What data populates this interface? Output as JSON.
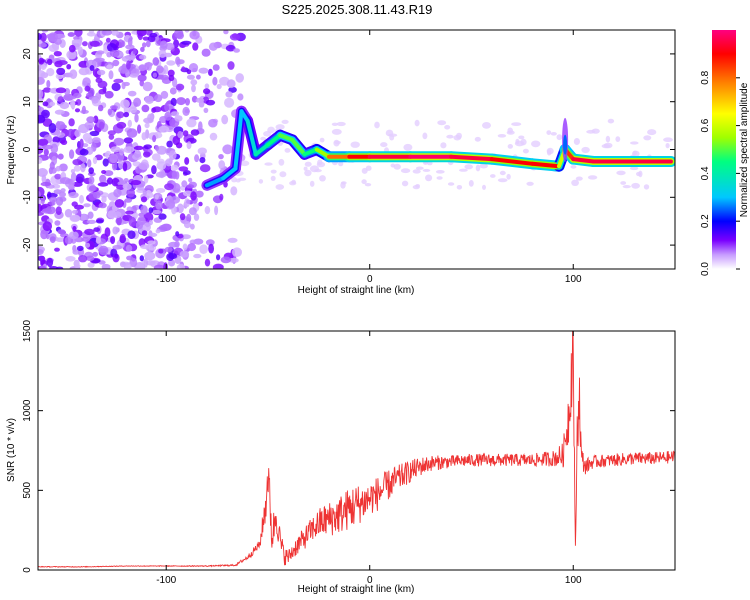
{
  "title": "S225.2025.308.11.43.R19",
  "chart_data": [
    {
      "type": "heatmap",
      "title": "S225.2025.308.11.43.R19",
      "xlabel": "Height of straight line (km)",
      "ylabel": "Frequency (Hz)",
      "xlim": [
        -163,
        150
      ],
      "ylim": [
        -25,
        25
      ],
      "xticks": [
        "-100",
        "0",
        "100"
      ],
      "yticks": [
        "20",
        "10",
        "0",
        "-10",
        "-20"
      ],
      "colorbar": {
        "label": "Normalized spectral amplitude",
        "range": [
          0,
          1
        ],
        "ticks": [
          "0.0",
          "0.2",
          "0.4",
          "0.6",
          "0.8"
        ],
        "colors": [
          "#ffffff",
          "#c79cff",
          "#7a00ff",
          "#0000ff",
          "#00c8ff",
          "#00ff80",
          "#a0ff00",
          "#ffff00",
          "#ff8000",
          "#ff0000",
          "#ff0080"
        ]
      },
      "ridge": {
        "x": [
          -80,
          -72,
          -66,
          -63,
          -60,
          -56,
          -50,
          -44,
          -38,
          -32,
          -26,
          -20,
          -10,
          0,
          20,
          40,
          60,
          80,
          93,
          96,
          100,
          110,
          130,
          148
        ],
        "y": [
          -7.5,
          -6,
          -4,
          8,
          6,
          -1,
          1,
          3,
          2,
          -1,
          0,
          -1.5,
          -1.5,
          -1.5,
          -1.5,
          -1.5,
          -2,
          -3,
          -3.5,
          0,
          -2,
          -2.5,
          -2.5,
          -2.5
        ],
        "amplitude": [
          0.28,
          0.3,
          0.3,
          0.3,
          0.35,
          0.4,
          0.45,
          0.5,
          0.5,
          0.45,
          0.55,
          0.8,
          0.9,
          0.95,
          0.98,
          0.95,
          0.9,
          0.9,
          0.6,
          0.85,
          0.95,
          0.95,
          0.95,
          0.9
        ]
      }
    },
    {
      "type": "line",
      "xlabel": "Height of straight line (km)",
      "ylabel": "SNR (10 * v/v)",
      "xlim": [
        -163,
        150
      ],
      "ylim": [
        0,
        1500
      ],
      "xticks": [
        "-100",
        "0",
        "100"
      ],
      "yticks": [
        "0",
        "500",
        "1000",
        "1500"
      ],
      "series": [
        {
          "name": "SNR",
          "color": "#ee3333",
          "x": [
            -163,
            -140,
            -120,
            -100,
            -80,
            -66,
            -60,
            -54,
            -51,
            -50,
            -48,
            -46,
            -44,
            -42,
            -40,
            -36,
            -32,
            -28,
            -24,
            -20,
            -16,
            -12,
            -8,
            -4,
            0,
            4,
            8,
            12,
            16,
            20,
            25,
            30,
            40,
            50,
            60,
            70,
            80,
            90,
            95,
            98,
            100,
            101,
            102,
            103,
            104,
            106,
            110,
            120,
            130,
            140,
            150
          ],
          "y": [
            20,
            20,
            25,
            25,
            25,
            30,
            80,
            160,
            420,
            620,
            200,
            360,
            180,
            90,
            80,
            150,
            200,
            260,
            300,
            320,
            340,
            370,
            400,
            420,
            450,
            480,
            520,
            560,
            590,
            620,
            650,
            670,
            680,
            690,
            690,
            690,
            690,
            700,
            720,
            1000,
            1450,
            80,
            900,
            1100,
            700,
            650,
            680,
            690,
            700,
            700,
            710
          ],
          "noise": [
            2,
            2,
            2,
            2,
            3,
            5,
            15,
            30,
            120,
            150,
            110,
            120,
            80,
            60,
            50,
            60,
            70,
            80,
            100,
            110,
            120,
            130,
            140,
            120,
            110,
            110,
            100,
            90,
            80,
            70,
            60,
            50,
            40,
            40,
            40,
            40,
            40,
            50,
            80,
            200,
            300,
            40,
            200,
            200,
            80,
            50,
            40,
            40,
            40,
            40,
            40
          ]
        }
      ]
    }
  ]
}
